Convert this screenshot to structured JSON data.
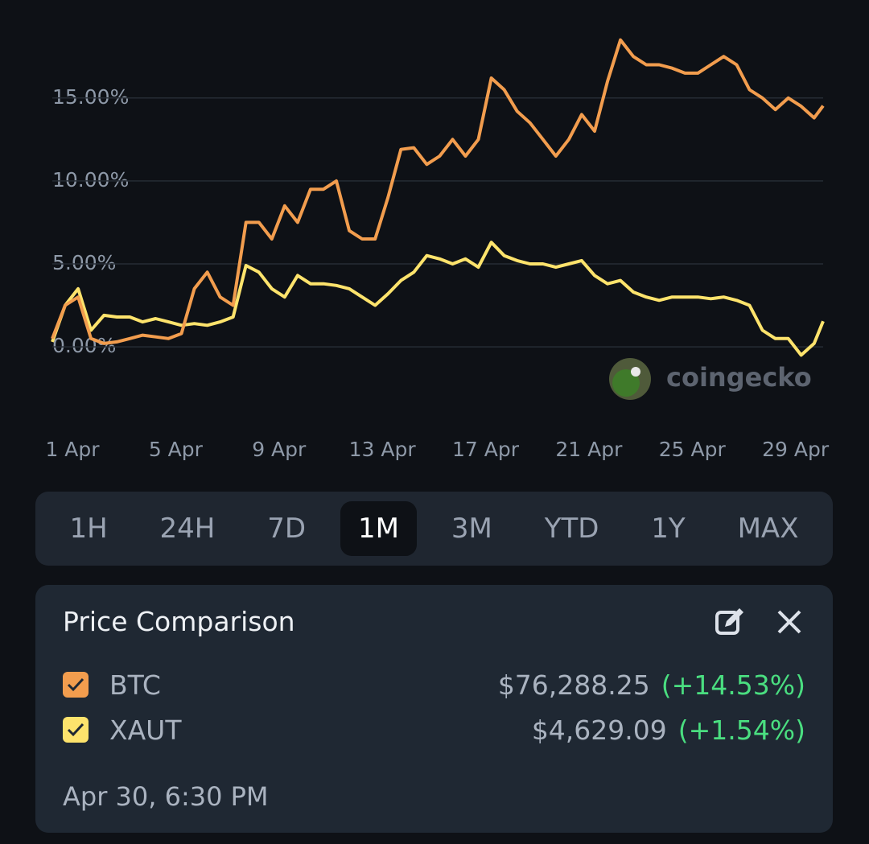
{
  "chart_data": {
    "type": "line",
    "x": [
      1,
      1.5,
      2,
      2.5,
      3,
      3.5,
      4,
      4.5,
      5,
      5.5,
      6,
      6.5,
      7,
      7.5,
      8,
      8.5,
      9,
      9.5,
      10,
      10.5,
      11,
      11.5,
      12,
      12.5,
      13,
      13.5,
      14,
      14.5,
      15,
      15.5,
      16,
      16.5,
      17,
      17.5,
      18,
      18.5,
      19,
      19.5,
      20,
      20.5,
      21,
      21.5,
      22,
      22.5,
      23,
      23.5,
      24,
      24.5,
      25,
      25.5,
      26,
      26.5,
      27,
      27.5,
      28,
      28.5,
      29,
      29.5,
      30,
      30.5,
      30.85
    ],
    "series": [
      {
        "name": "BTC",
        "color": "#f29d4e",
        "values": [
          0.5,
          2.5,
          3.0,
          0.5,
          0.2,
          0.3,
          0.5,
          0.7,
          0.6,
          0.5,
          0.8,
          3.5,
          4.5,
          3.0,
          2.5,
          7.5,
          7.5,
          6.5,
          8.5,
          7.5,
          9.5,
          9.5,
          10.0,
          7.0,
          6.5,
          6.5,
          9.0,
          11.9,
          12.0,
          11.0,
          11.5,
          12.5,
          11.5,
          12.5,
          16.2,
          15.5,
          14.2,
          13.5,
          12.5,
          11.5,
          12.5,
          14.0,
          13.0,
          16.0,
          18.5,
          17.5,
          17.0,
          17.0,
          16.8,
          16.5,
          16.5,
          17.0,
          17.5,
          17.0,
          15.5,
          15.0,
          14.3,
          15.0,
          14.5,
          13.8,
          14.53
        ]
      },
      {
        "name": "XAUT",
        "color": "#fde36c",
        "values": [
          0.3,
          2.5,
          3.5,
          1.0,
          1.9,
          1.8,
          1.8,
          1.5,
          1.7,
          1.5,
          1.3,
          1.4,
          1.3,
          1.5,
          1.8,
          4.9,
          4.5,
          3.5,
          3.0,
          4.3,
          3.8,
          3.8,
          3.7,
          3.5,
          3.0,
          2.5,
          3.2,
          4.0,
          4.5,
          5.5,
          5.3,
          5.0,
          5.3,
          4.8,
          6.3,
          5.5,
          5.2,
          5.0,
          5.0,
          4.8,
          5.0,
          5.2,
          4.3,
          3.8,
          4.0,
          3.3,
          3.0,
          2.8,
          3.0,
          3.0,
          3.0,
          2.9,
          3.0,
          2.8,
          2.5,
          1.0,
          0.5,
          0.5,
          -0.5,
          0.2,
          1.54
        ]
      }
    ],
    "xlim": [
      1,
      30.85
    ],
    "xticks": [
      {
        "value": 1,
        "label": "1 Apr"
      },
      {
        "value": 5,
        "label": "5 Apr"
      },
      {
        "value": 9,
        "label": "9 Apr"
      },
      {
        "value": 13,
        "label": "13 Apr"
      },
      {
        "value": 17,
        "label": "17 Apr"
      },
      {
        "value": 21,
        "label": "21 Apr"
      },
      {
        "value": 25,
        "label": "25 Apr"
      },
      {
        "value": 29,
        "label": "29 Apr"
      }
    ],
    "ylim": [
      -1.5,
      19.5
    ],
    "yticks": [
      {
        "value": 0,
        "label": "0.00%"
      },
      {
        "value": 5,
        "label": "5.00%"
      },
      {
        "value": 10,
        "label": "10.00%"
      },
      {
        "value": 15,
        "label": "15.00%"
      }
    ],
    "grid": true,
    "watermark": "coingecko"
  },
  "timeframes": {
    "options": [
      "1H",
      "24H",
      "7D",
      "1M",
      "3M",
      "YTD",
      "1Y",
      "MAX"
    ],
    "selected": 3
  },
  "comparison": {
    "title": "Price Comparison",
    "items": [
      {
        "price": "$76,288.25",
        "change": "(+14.53%)"
      },
      {
        "price": "$4,629.09",
        "change": "(+1.54%)"
      }
    ],
    "timestamp": "Apr 30, 6:30 PM"
  }
}
